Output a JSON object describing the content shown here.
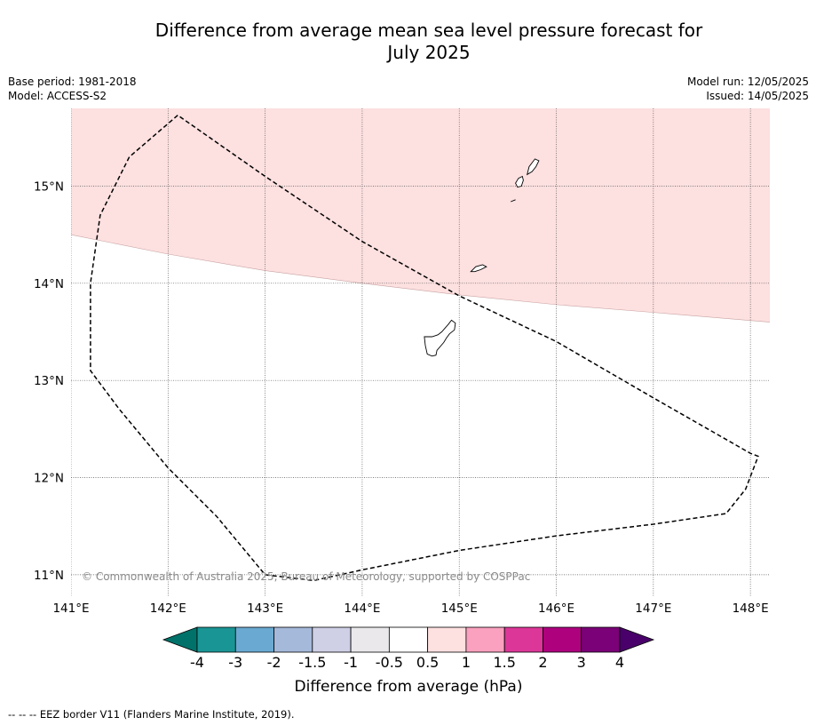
{
  "title_line1": "Difference from average mean sea level pressure forecast for",
  "title_line2": "July 2025",
  "meta": {
    "base_period": "Base period: 1981-2018",
    "model": "Model: ACCESS-S2",
    "model_run": "Model run: 12/05/2025",
    "issued": "Issued: 14/05/2025"
  },
  "map": {
    "lon_range": [
      141.0,
      148.2
    ],
    "lat_range": [
      10.77,
      15.8
    ],
    "lon_ticks": [
      {
        "value": 141,
        "label": "141°E"
      },
      {
        "value": 142,
        "label": "142°E"
      },
      {
        "value": 143,
        "label": "143°E"
      },
      {
        "value": 144,
        "label": "144°E"
      },
      {
        "value": 145,
        "label": "145°E"
      },
      {
        "value": 146,
        "label": "146°E"
      },
      {
        "value": 147,
        "label": "147°E"
      },
      {
        "value": 148,
        "label": "148°E"
      }
    ],
    "lat_ticks": [
      {
        "value": 15,
        "label": "15°N"
      },
      {
        "value": 14,
        "label": "14°N"
      },
      {
        "value": 13,
        "label": "13°N"
      },
      {
        "value": 12,
        "label": "12°N"
      },
      {
        "value": 11,
        "label": "11°N"
      }
    ],
    "gridlines": "dotted",
    "anomaly_region": {
      "category": "0.5 to 1 hPa",
      "color": "#fde0e0",
      "southern_boundary": [
        [
          141.0,
          14.5
        ],
        [
          142.0,
          14.3
        ],
        [
          143.0,
          14.13
        ],
        [
          144.0,
          14.0
        ],
        [
          145.0,
          13.88
        ],
        [
          146.0,
          13.78
        ],
        [
          147.0,
          13.7
        ],
        [
          148.2,
          13.6
        ]
      ]
    },
    "eez_border": [
      [
        142.1,
        15.73
      ],
      [
        141.6,
        15.3
      ],
      [
        141.3,
        14.7
      ],
      [
        141.2,
        14.0
      ],
      [
        141.2,
        13.1
      ],
      [
        141.5,
        12.7
      ],
      [
        142.0,
        12.1
      ],
      [
        142.5,
        11.6
      ],
      [
        143.0,
        11.0
      ],
      [
        143.5,
        10.94
      ],
      [
        144.0,
        11.05
      ],
      [
        145.0,
        11.25
      ],
      [
        146.0,
        11.4
      ],
      [
        147.0,
        11.52
      ],
      [
        147.75,
        11.63
      ],
      [
        147.95,
        11.88
      ],
      [
        148.08,
        12.22
      ],
      [
        148.0,
        12.25
      ],
      [
        147.0,
        12.82
      ],
      [
        146.0,
        13.4
      ],
      [
        145.0,
        13.87
      ],
      [
        144.0,
        14.43
      ],
      [
        143.0,
        15.1
      ],
      [
        142.1,
        15.73
      ]
    ],
    "islands": [
      {
        "name": "guam",
        "outline": [
          [
            144.92,
            13.62
          ],
          [
            144.89,
            13.58
          ],
          [
            144.82,
            13.5
          ],
          [
            144.78,
            13.47
          ],
          [
            144.72,
            13.45
          ],
          [
            144.64,
            13.45
          ],
          [
            144.65,
            13.36
          ],
          [
            144.67,
            13.27
          ],
          [
            144.72,
            13.25
          ],
          [
            144.76,
            13.26
          ],
          [
            144.77,
            13.31
          ],
          [
            144.84,
            13.39
          ],
          [
            144.87,
            13.44
          ],
          [
            144.9,
            13.48
          ],
          [
            144.95,
            13.52
          ],
          [
            144.96,
            13.59
          ],
          [
            144.92,
            13.62
          ]
        ]
      },
      {
        "name": "rota",
        "outline": [
          [
            145.12,
            14.12
          ],
          [
            145.17,
            14.17
          ],
          [
            145.24,
            14.19
          ],
          [
            145.28,
            14.17
          ],
          [
            145.22,
            14.14
          ],
          [
            145.16,
            14.12
          ],
          [
            145.12,
            14.12
          ]
        ]
      },
      {
        "name": "tinian",
        "outline": [
          [
            145.6,
            14.99
          ],
          [
            145.58,
            15.03
          ],
          [
            145.61,
            15.08
          ],
          [
            145.65,
            15.1
          ],
          [
            145.66,
            15.06
          ],
          [
            145.64,
            15.0
          ],
          [
            145.6,
            14.99
          ]
        ]
      },
      {
        "name": "saipan",
        "outline": [
          [
            145.7,
            15.12
          ],
          [
            145.72,
            15.2
          ],
          [
            145.78,
            15.28
          ],
          [
            145.82,
            15.26
          ],
          [
            145.79,
            15.2
          ],
          [
            145.75,
            15.15
          ],
          [
            145.7,
            15.12
          ]
        ]
      },
      {
        "name": "aguijan",
        "outline": [
          [
            145.53,
            14.84
          ],
          [
            145.58,
            14.86
          ]
        ]
      }
    ]
  },
  "copyright": "© Commonwealth of Australia 2025, Bureau of Meteorology, supported by COSPPac",
  "colorbar": {
    "title": "Difference from average (hPa)",
    "labels": [
      "-4",
      "-3",
      "-2",
      "-1.5",
      "-1",
      "-0.5",
      "0.5",
      "1",
      "1.5",
      "2",
      "3",
      "4"
    ],
    "colors": [
      "#00726a",
      "#1a9595",
      "#6aaad2",
      "#a5b9da",
      "#cfcfe6",
      "#eae8eb",
      "#ffffff",
      "#fde0e0",
      "#f9a1be",
      "#dc3798",
      "#ae017e",
      "#7a0177",
      "#49006a"
    ]
  },
  "footnote": "--  --  -- EEZ border V11 (Flanders Marine Institute, 2019)."
}
